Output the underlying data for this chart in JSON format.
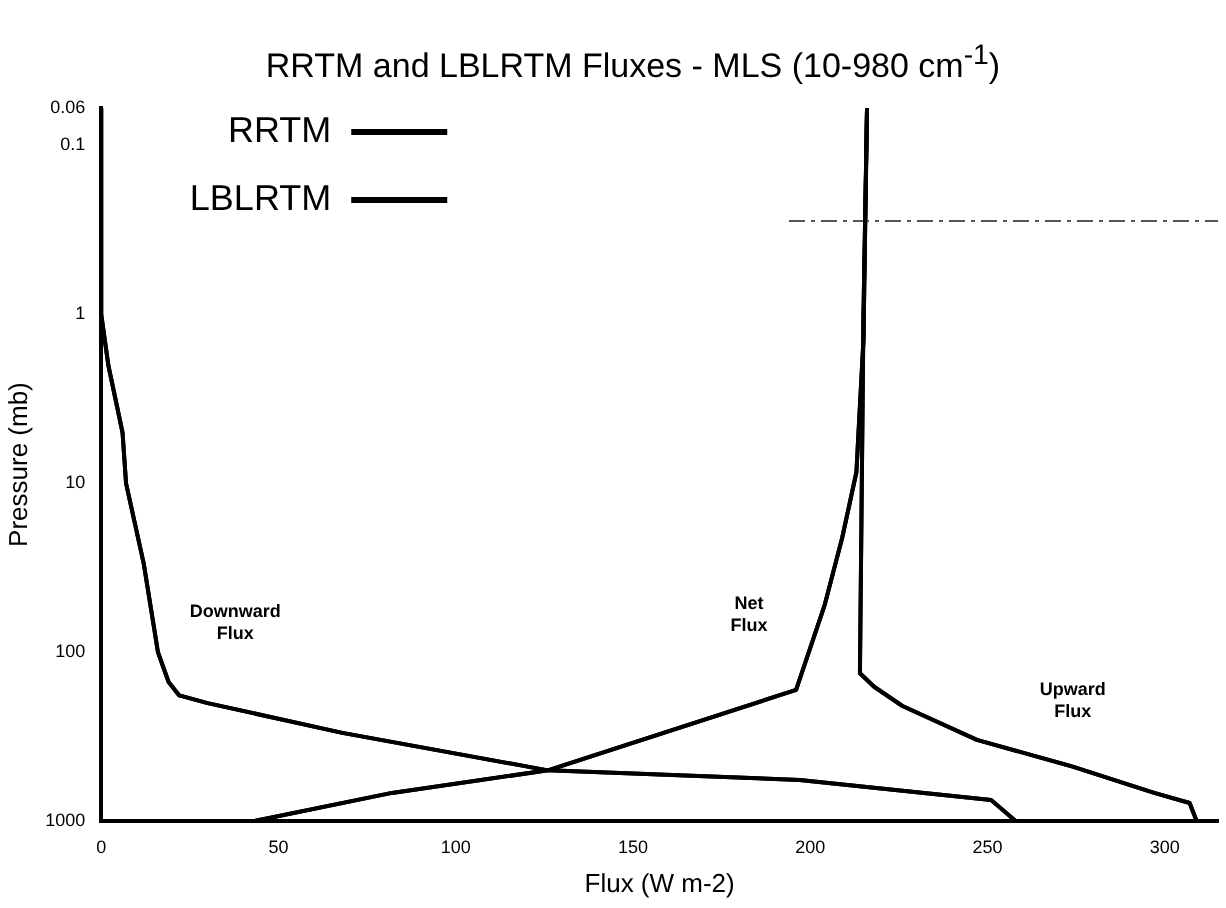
{
  "chart_data": {
    "type": "line",
    "title": "RRTM and LBLRTM Fluxes - MLS (10-980 cm$^{-1}$)",
    "xlabel": "Flux (W m-2)",
    "ylabel": "Pressure (mb)",
    "log": "y",
    "xlim": [
      0,
      315
    ],
    "xticks": [
      0,
      50,
      100,
      150,
      200,
      250,
      300
    ],
    "ylim": [
      1000,
      0.06
    ],
    "yticks": [
      0.06,
      0.1,
      1,
      10,
      100,
      1000
    ],
    "grid": false,
    "legend": "top left",
    "marker": "none",
    "line_style": "solid",
    "series": [
      {
        "name": "RRTM",
        "color": "#000000",
        "x": [
          0,
          0,
          2,
          6,
          7,
          12,
          16,
          19,
          22,
          30,
          68,
          126,
          197,
          251,
          258
        ],
        "values": [
          0.06,
          1,
          2,
          5,
          10,
          30,
          100,
          150,
          180,
          200,
          300,
          500,
          570,
          750,
          1000
        ]
      },
      {
        "color": "#000000",
        "x": [
          216,
          215,
          214,
          218,
          226,
          247,
          274,
          297,
          307,
          309
        ],
        "values": [
          0.06,
          1,
          133,
          160,
          208,
          330,
          475,
          680,
          780,
          1000
        ]
      },
      {
        "color": "#000000",
        "x": [
          216,
          215,
          213,
          209,
          204,
          196,
          126,
          82,
          43
        ],
        "values": [
          0.06,
          1.4,
          8.6,
          21,
          53,
          167,
          500,
          680,
          1000
        ]
      },
      {
        "type": "line",
        "line_style": "dashed",
        "color": "#555555",
        "x": [
          194,
          315
        ],
        "values": [
          0.28,
          0.28
        ]
      },
      {
        "name": "LBLRTM",
        "color": "#000000",
        "x": [
          0,
          0,
          2,
          6,
          7,
          12,
          16,
          19,
          22,
          30,
          68,
          126,
          197,
          251,
          258
        ],
        "values": [
          0.06,
          1,
          2,
          5,
          10,
          30,
          100,
          150,
          180,
          200,
          300,
          500,
          570,
          750,
          1000
        ]
      },
      {
        "color": "#000000",
        "x": [
          216,
          215,
          214,
          218,
          226,
          247,
          274,
          297,
          307,
          309
        ],
        "values": [
          0.06,
          1,
          133,
          160,
          208,
          330,
          475,
          680,
          780,
          1000
        ]
      },
      {
        "color": "#000000",
        "x": [
          216,
          215,
          213,
          209,
          204,
          196,
          126,
          82,
          43
        ],
        "values": [
          0.06,
          1.4,
          8.6,
          21,
          53,
          167,
          500,
          680,
          1000
        ]
      }
    ],
    "annotations": [
      "Downward\nFlux",
      "Net\nFlux",
      "Upward\nFlux"
    ]
  }
}
